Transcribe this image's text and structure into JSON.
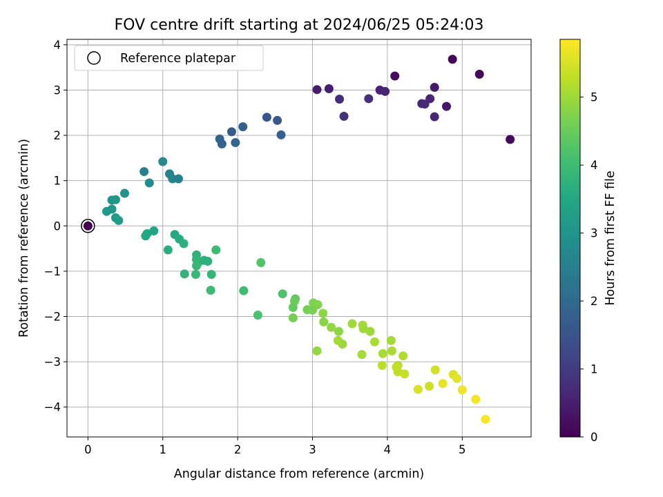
{
  "chart_data": {
    "type": "scatter",
    "title": "FOV centre drift starting at 2024/06/25 05:24:03",
    "xlabel": "Angular distance from reference (arcmin)",
    "ylabel": "Rotation from reference (arcmin)",
    "xlim": [
      -0.28,
      5.92
    ],
    "ylim": [
      -4.66,
      4.12
    ],
    "xticks": [
      0,
      1,
      2,
      3,
      4,
      5
    ],
    "yticks": [
      -4,
      -3,
      -2,
      -1,
      0,
      1,
      2,
      3,
      4
    ],
    "grid": true,
    "legend": {
      "placement": "top-left",
      "entries": [
        "Reference platepar"
      ]
    },
    "reference_point": {
      "x": 0.0,
      "y": 0.0
    },
    "colorbar": {
      "label": "Hours from first FF file",
      "colormap": "viridis",
      "range": [
        0,
        5.85
      ],
      "ticks": [
        0,
        1,
        2,
        3,
        4,
        5
      ]
    },
    "series": [
      {
        "x": [
          4.87,
          5.23,
          4.1,
          3.06,
          3.22,
          3.9,
          3.97,
          4.63,
          4.57,
          3.36,
          3.75,
          4.46,
          4.5,
          4.79,
          3.42,
          4.63,
          5.64,
          2.39,
          2.53,
          2.07,
          1.92,
          2.58,
          1.76,
          1.97,
          1.79,
          1.0,
          0.75,
          1.09,
          1.13,
          1.21,
          0.82,
          0.49,
          0.32,
          0.37,
          0.25,
          0.32,
          0.37,
          0.41,
          0.0,
          0.79,
          0.77,
          0.88,
          1.16,
          1.22,
          1.28,
          1.07,
          1.71,
          1.45,
          1.45,
          1.47,
          1.55,
          1.6,
          1.44,
          1.29,
          1.65,
          1.45,
          1.64,
          2.31,
          2.08,
          2.27,
          2.6,
          2.77,
          2.76,
          2.74,
          2.74,
          3.01,
          3.07,
          2.93,
          3.0,
          3.14,
          3.15,
          3.25,
          3.35,
          3.53,
          3.67,
          3.68,
          3.4,
          3.34,
          3.77,
          3.83,
          3.66,
          3.06,
          4.06,
          3.94,
          4.05,
          4.21,
          4.14,
          3.93,
          4.14,
          4.23,
          4.12,
          4.64,
          4.56,
          4.41,
          4.88,
          4.93,
          4.74,
          5.0,
          5.18,
          5.31
        ],
        "y": [
          3.68,
          3.35,
          3.31,
          3.01,
          3.03,
          3.0,
          2.97,
          3.06,
          2.81,
          2.8,
          2.81,
          2.7,
          2.69,
          2.64,
          2.42,
          2.41,
          1.91,
          2.4,
          2.33,
          2.19,
          2.08,
          2.01,
          1.92,
          1.84,
          1.81,
          1.42,
          1.2,
          1.15,
          1.04,
          1.04,
          0.95,
          0.72,
          0.57,
          0.58,
          0.32,
          0.37,
          0.18,
          0.12,
          0.0,
          -0.17,
          -0.22,
          -0.11,
          -0.19,
          -0.29,
          -0.39,
          -0.53,
          -0.53,
          -0.64,
          -0.74,
          -0.82,
          -0.76,
          -0.78,
          -1.07,
          -1.06,
          -1.07,
          -0.88,
          -1.42,
          -0.81,
          -1.43,
          -1.97,
          -1.5,
          -1.61,
          -1.66,
          -1.8,
          -2.03,
          -1.7,
          -1.74,
          -1.85,
          -1.86,
          -1.93,
          -2.12,
          -2.24,
          -2.33,
          -2.16,
          -2.19,
          -2.27,
          -2.61,
          -2.53,
          -2.33,
          -2.56,
          -2.84,
          -2.76,
          -2.76,
          -2.82,
          -2.53,
          -2.87,
          -3.08,
          -3.08,
          -3.22,
          -3.27,
          -3.12,
          -3.18,
          -3.54,
          -3.61,
          -3.28,
          -3.37,
          -3.48,
          -3.62,
          -3.83,
          -4.27
        ],
        "hours": [
          0.1,
          0.15,
          0.2,
          0.45,
          0.5,
          0.55,
          0.58,
          0.4,
          0.6,
          0.75,
          0.8,
          0.65,
          0.68,
          0.35,
          0.85,
          0.62,
          0.12,
          1.55,
          1.6,
          1.75,
          1.7,
          1.8,
          1.9,
          1.95,
          1.85,
          2.75,
          2.5,
          2.6,
          2.65,
          2.55,
          2.8,
          3.0,
          3.0,
          3.05,
          3.1,
          3.05,
          3.15,
          3.2,
          0.0,
          3.45,
          3.5,
          3.4,
          3.55,
          3.6,
          3.7,
          3.65,
          3.95,
          3.75,
          3.8,
          3.85,
          3.7,
          3.75,
          3.9,
          3.8,
          3.85,
          3.9,
          3.95,
          4.25,
          4.0,
          4.15,
          4.2,
          4.4,
          4.5,
          4.45,
          4.6,
          4.7,
          4.75,
          4.6,
          4.65,
          4.85,
          4.8,
          4.9,
          4.85,
          5.0,
          5.05,
          5.0,
          4.95,
          5.05,
          5.0,
          5.1,
          5.05,
          4.9,
          5.1,
          5.1,
          5.05,
          5.15,
          5.2,
          5.25,
          5.3,
          5.35,
          5.3,
          5.45,
          5.4,
          5.5,
          5.55,
          5.6,
          5.65,
          5.7,
          5.75,
          5.8
        ]
      }
    ]
  }
}
